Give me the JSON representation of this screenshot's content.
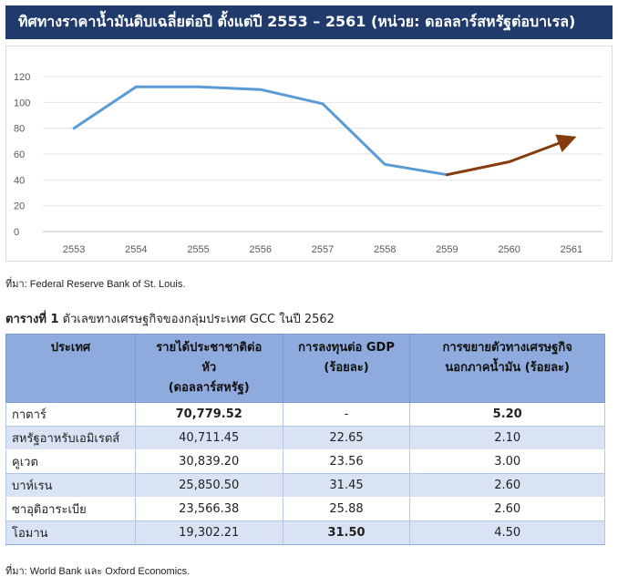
{
  "header": {
    "title": "ทิศทางราคาน้ำมันดิบเฉลี่ยต่อปี ตั้งแต่ปี 2553 – 2561 (หน่วย: ดอลลาร์สหรัฐต่อบาเรล)"
  },
  "chart_data": {
    "type": "line",
    "categories": [
      "2553",
      "2554",
      "2555",
      "2556",
      "2557",
      "2558",
      "2559",
      "2560",
      "2561"
    ],
    "series": [
      {
        "values": [
          80,
          112,
          112,
          110,
          99,
          52,
          44,
          null,
          null
        ],
        "color": "#5b9bd5"
      },
      {
        "values": [
          null,
          null,
          null,
          null,
          null,
          null,
          44,
          54,
          72
        ],
        "color": "#843c0c",
        "arrow": true
      }
    ],
    "yticks": [
      "0",
      "20",
      "40",
      "60",
      "80",
      "100",
      "120"
    ],
    "ylim": [
      0,
      120
    ],
    "grid": true
  },
  "chart_source": "ที่มา: Federal Reserve Bank of St. Louis.",
  "table": {
    "caption_bold": "ตารางที่ 1",
    "caption_text": " ตัวเลขทางเศรษฐกิจของกลุ่มประเทศ GCC ในปี 2562",
    "headers": [
      "ประเทศ",
      "รายได้ประชาชาติต่อหัว (ดอลลาร์สหรัฐ)",
      "การลงทุนต่อ GDP (ร้อยละ)",
      "การขยายตัวทางเศรษฐกิจนอกภาคน้ำมัน (ร้อยละ)"
    ],
    "header_lines": [
      [
        "ประเทศ"
      ],
      [
        "รายได้ประชาชาติต่อ",
        "หัว",
        "(ดอลลาร์สหรัฐ)"
      ],
      [
        "การลงทุนต่อ GDP",
        "(ร้อยละ)"
      ],
      [
        "การขยายตัวทางเศรษฐกิจ",
        "นอกภาคน้ำมัน (ร้อยละ)"
      ]
    ],
    "rows": [
      {
        "country": "กาตาร์",
        "income": "70,779.52",
        "investment": "-",
        "growth": "5.20"
      },
      {
        "country": "สหรัฐอาหรับเอมิเรตส์",
        "income": "40,711.45",
        "investment": "22.65",
        "growth": "2.10"
      },
      {
        "country": "คูเวต",
        "income": "30,839.20",
        "investment": "23.56",
        "growth": "3.00"
      },
      {
        "country": "บาห์เรน",
        "income": "25,850.50",
        "investment": "31.45",
        "growth": "2.60"
      },
      {
        "country": "ซาอุดิอาระเบีย",
        "income": "23,566.38",
        "investment": "25.88",
        "growth": "2.60"
      },
      {
        "country": "โอมาน",
        "income": "19,302.21",
        "investment": "31.50",
        "growth": "4.50"
      }
    ]
  },
  "table_source": "ที่มา: World Bank และ Oxford Economics."
}
